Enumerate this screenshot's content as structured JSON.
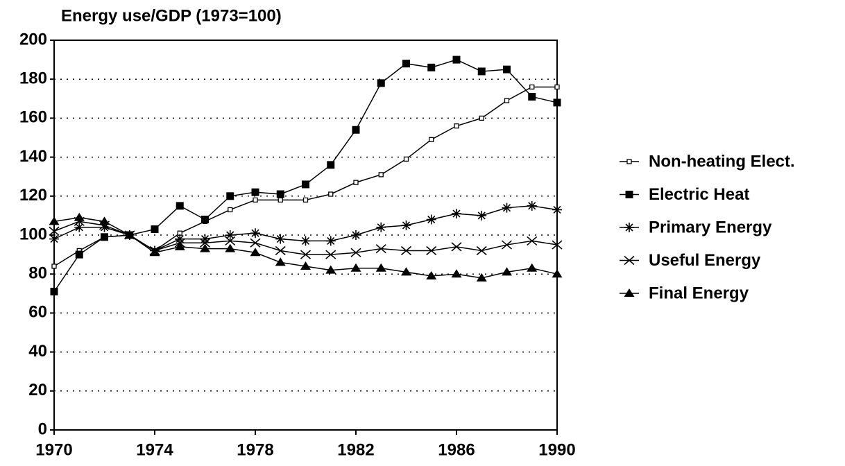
{
  "chart_data": {
    "type": "line",
    "y_label": "Energy use/GDP (1973=100)",
    "x": [
      1970,
      1971,
      1972,
      1973,
      1974,
      1975,
      1976,
      1977,
      1978,
      1979,
      1980,
      1981,
      1982,
      1983,
      1984,
      1985,
      1986,
      1987,
      1988,
      1989,
      1990
    ],
    "xlim": [
      1970,
      1990
    ],
    "xticks": [
      1970,
      1974,
      1978,
      1982,
      1986,
      1990
    ],
    "ylim": [
      0,
      200
    ],
    "yticks": [
      0,
      20,
      40,
      60,
      80,
      100,
      120,
      140,
      160,
      180,
      200
    ],
    "grid": true,
    "legend": "right",
    "series": [
      {
        "name": "Non-heating Elect.",
        "color": "#000000",
        "marker": "open-square",
        "values": [
          84,
          92,
          99,
          100,
          92,
          101,
          107,
          113,
          118,
          118,
          118,
          121,
          127,
          131,
          139,
          149,
          156,
          160,
          169,
          176,
          176
        ]
      },
      {
        "name": "Electric Heat",
        "color": "#000000",
        "marker": "square",
        "values": [
          71,
          90,
          99,
          100,
          103,
          115,
          108,
          120,
          122,
          121,
          126,
          136,
          154,
          178,
          188,
          186,
          190,
          184,
          185,
          171,
          168
        ]
      },
      {
        "name": "Primary Energy",
        "color": "#000000",
        "marker": "asterisk",
        "values": [
          98,
          104,
          104,
          100,
          92,
          98,
          98,
          100,
          101,
          98,
          97,
          97,
          100,
          104,
          105,
          108,
          111,
          110,
          114,
          115,
          113
        ]
      },
      {
        "name": "Useful Energy",
        "color": "#000000",
        "marker": "cross",
        "values": [
          102,
          107,
          105,
          100,
          92,
          96,
          96,
          97,
          96,
          92,
          90,
          90,
          91,
          93,
          92,
          92,
          94,
          92,
          95,
          97,
          95
        ]
      },
      {
        "name": "Final Energy",
        "color": "#000000",
        "marker": "triangle",
        "values": [
          107,
          109,
          107,
          100,
          91,
          94,
          93,
          93,
          91,
          86,
          84,
          82,
          83,
          83,
          81,
          79,
          80,
          78,
          81,
          83,
          80
        ]
      }
    ]
  }
}
